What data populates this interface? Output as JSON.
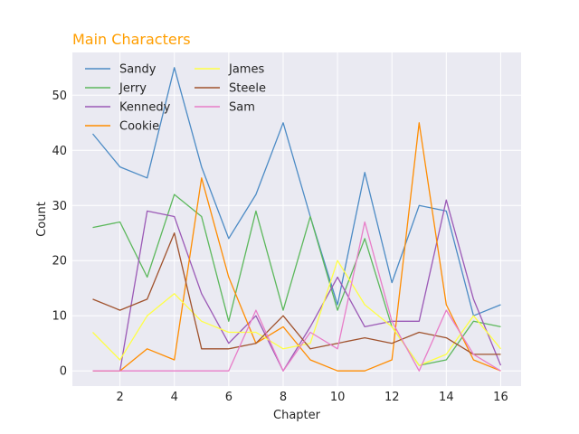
{
  "chart_data": {
    "type": "line",
    "title": "Main Characters",
    "title_color": "#FF9E00",
    "xlabel": "Chapter",
    "ylabel": "Count",
    "x": [
      1,
      2,
      3,
      4,
      5,
      6,
      7,
      8,
      9,
      10,
      11,
      12,
      13,
      14,
      15,
      16
    ],
    "xlim": [
      0.25,
      16.75
    ],
    "ylim": [
      -2.75,
      57.75
    ],
    "xticks": [
      2,
      4,
      6,
      8,
      10,
      12,
      14,
      16
    ],
    "yticks": [
      0,
      10,
      20,
      30,
      40,
      50
    ],
    "grid": true,
    "legend_position": "top-left",
    "background": "#EAEAF2",
    "series": [
      {
        "name": "Sandy",
        "color": "#4C8BC5",
        "values": [
          43,
          37,
          35,
          55,
          37,
          24,
          32,
          45,
          28,
          12,
          36,
          16,
          30,
          29,
          10,
          12
        ]
      },
      {
        "name": "Jerry",
        "color": "#5CB85C",
        "values": [
          26,
          27,
          17,
          32,
          28,
          9,
          29,
          11,
          28,
          11,
          24,
          8,
          1,
          2,
          9,
          8
        ]
      },
      {
        "name": "Kennedy",
        "color": "#9B59B6",
        "values": [
          0,
          0,
          29,
          28,
          14,
          5,
          10,
          0,
          8,
          17,
          8,
          9,
          9,
          31,
          13,
          1
        ]
      },
      {
        "name": "Cookie",
        "color": "#FF8C00",
        "values": [
          0,
          0,
          4,
          2,
          35,
          17,
          5,
          8,
          2,
          0,
          0,
          2,
          45,
          12,
          2,
          0
        ]
      },
      {
        "name": "James",
        "color": "#FFFF44",
        "values": [
          7,
          2,
          10,
          14,
          9,
          7,
          7,
          4,
          5,
          20,
          12,
          8,
          1,
          3,
          10,
          4
        ]
      },
      {
        "name": "Steele",
        "color": "#A0522D",
        "values": [
          13,
          11,
          13,
          25,
          4,
          4,
          5,
          10,
          4,
          5,
          6,
          5,
          7,
          6,
          3,
          3
        ]
      },
      {
        "name": "Sam",
        "color": "#E87DC8",
        "values": [
          0,
          0,
          0,
          0,
          0,
          0,
          11,
          0,
          7,
          4,
          27,
          9,
          0,
          11,
          3,
          0
        ]
      }
    ]
  }
}
